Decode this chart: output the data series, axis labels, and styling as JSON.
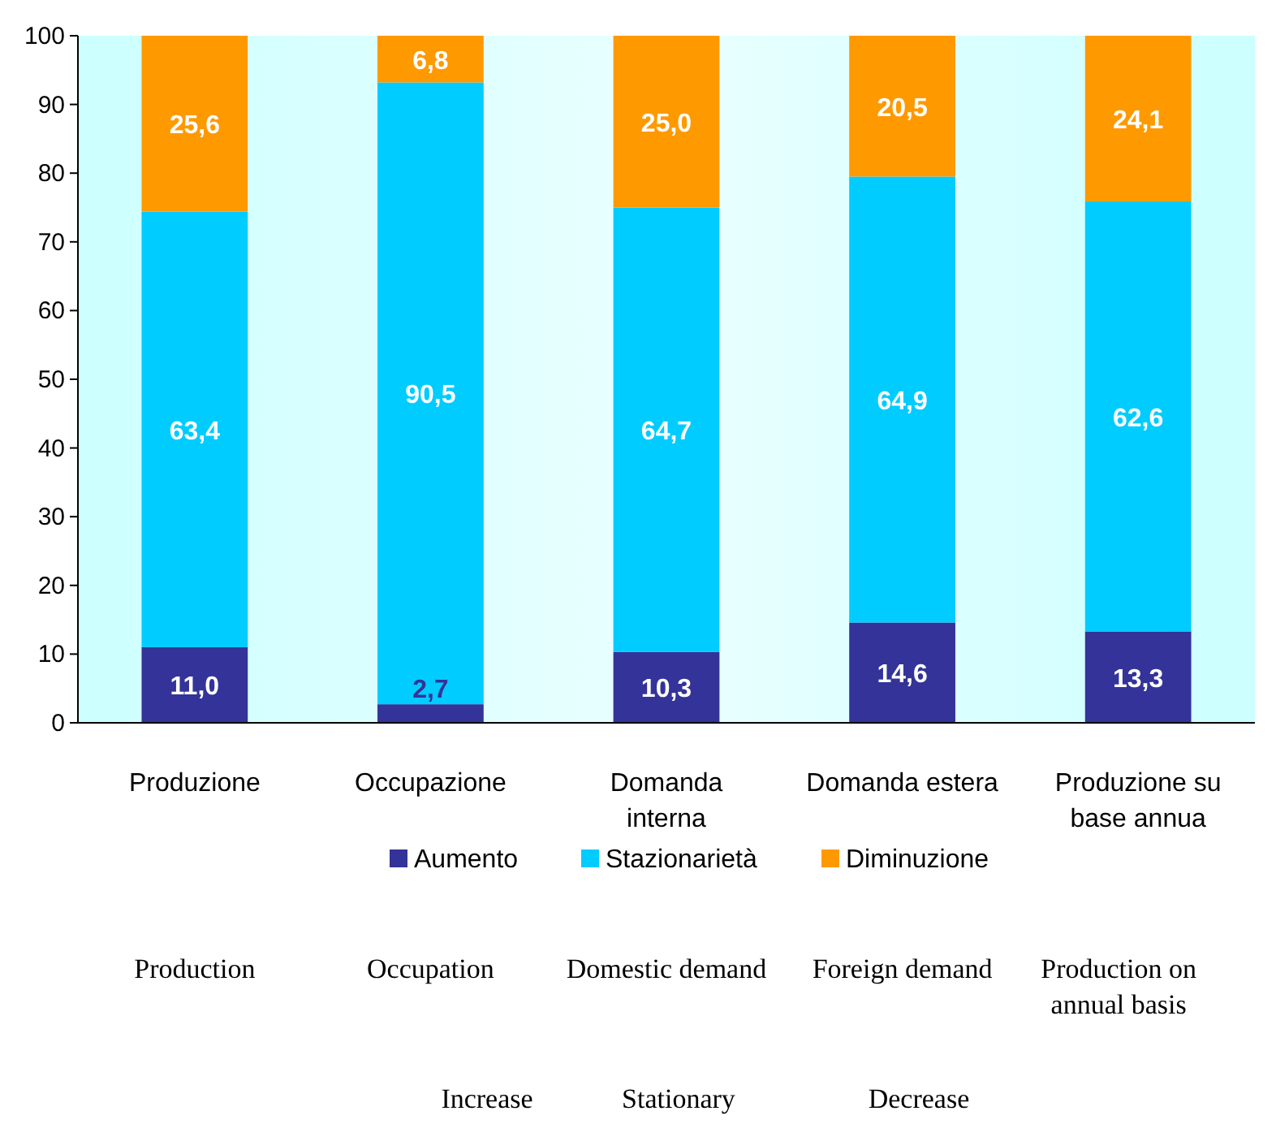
{
  "chart_data": {
    "type": "bar",
    "stacked": true,
    "categories": [
      "Produzione",
      "Occupazione",
      "Domanda interna",
      "Domanda estera",
      "Produzione su base annua"
    ],
    "series": [
      {
        "name": "Aumento",
        "color": "#333399",
        "values": [
          11.0,
          2.7,
          10.3,
          14.6,
          13.3
        ],
        "value_labels": [
          "11,0",
          "2,7",
          "10,3",
          "14,6",
          "13,3"
        ]
      },
      {
        "name": "Stazionarietà",
        "color": "#00ccff",
        "values": [
          63.4,
          90.5,
          64.7,
          64.9,
          62.6
        ],
        "value_labels": [
          "63,4",
          "90,5",
          "64,7",
          "64,9",
          "62,6"
        ]
      },
      {
        "name": "Diminuzione",
        "color": "#ff9900",
        "values": [
          25.6,
          6.8,
          25.0,
          20.5,
          24.1
        ],
        "value_labels": [
          "25,6",
          "6,8",
          "25,0",
          "20,5",
          "24,1"
        ]
      }
    ],
    "ylim": [
      0,
      100
    ],
    "yticks": [
      0,
      10,
      20,
      30,
      40,
      50,
      60,
      70,
      80,
      90,
      100
    ],
    "legend": "bottom",
    "grid": false,
    "annotations": [
      "Production",
      "Occupation",
      "Domestic demand",
      "Foreign demand",
      "Production on annual basis",
      "Increase",
      "Stationary",
      "Decrease"
    ]
  }
}
